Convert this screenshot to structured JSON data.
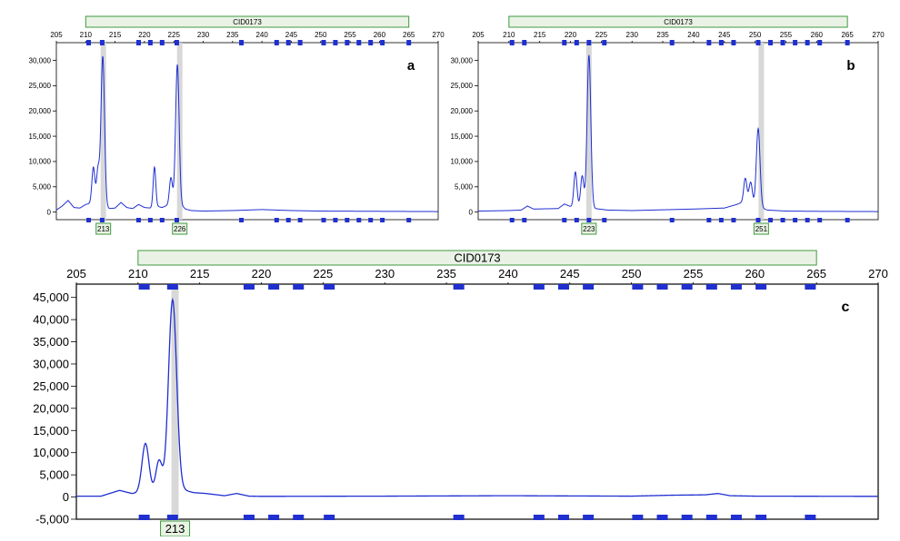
{
  "colors": {
    "trace": "#1f2fd0",
    "bin_marker": "#1f2fd0",
    "locus_fill": "#eaf2e6",
    "locus_border": "#3f9a3f",
    "allele_fill": "#e8f3e3",
    "highlight": "#d8d8d8"
  },
  "chart_data": [
    {
      "type": "line",
      "panel_label": "a",
      "locus_name": "CID0173",
      "x_ticks": [
        205,
        210,
        215,
        220,
        225,
        230,
        235,
        240,
        245,
        250,
        255,
        260,
        265,
        270
      ],
      "x_range": [
        205,
        270
      ],
      "y_ticks": [
        0,
        5000,
        10000,
        15000,
        20000,
        25000,
        30000
      ],
      "y_tick_labels": [
        "0",
        "5,000",
        "10,000",
        "15,000",
        "20,000",
        "25,000",
        "30,000"
      ],
      "y_range": [
        -1500,
        33500
      ],
      "locus_range": [
        210,
        265
      ],
      "bins": [
        210.5,
        212.8,
        219,
        221,
        223,
        225.5,
        236.5,
        242.5,
        244.5,
        246.5,
        250.5,
        252.5,
        254.5,
        256.5,
        258.5,
        260.5,
        265
      ],
      "alleles": [
        {
          "x": 213,
          "label": "213"
        },
        {
          "x": 226,
          "label": "226"
        }
      ],
      "baseline": [
        [
          205,
          400
        ],
        [
          206,
          1200
        ],
        [
          207,
          2300
        ],
        [
          208,
          900
        ],
        [
          209,
          800
        ],
        [
          210,
          1500
        ],
        [
          211,
          1800
        ],
        [
          212,
          2000
        ],
        [
          213,
          1200
        ],
        [
          214,
          700
        ],
        [
          215,
          800
        ],
        [
          216,
          1900
        ],
        [
          217,
          900
        ],
        [
          218,
          700
        ],
        [
          219,
          1500
        ],
        [
          220,
          900
        ],
        [
          221,
          800
        ],
        [
          222,
          1200
        ],
        [
          223,
          900
        ],
        [
          224,
          1400
        ],
        [
          225,
          1800
        ],
        [
          226,
          1600
        ],
        [
          227,
          600
        ],
        [
          228,
          300
        ],
        [
          230,
          200
        ],
        [
          235,
          300
        ],
        [
          240,
          500
        ],
        [
          245,
          300
        ],
        [
          250,
          200
        ],
        [
          260,
          150
        ],
        [
          270,
          100
        ]
      ],
      "peaks": [
        [
          211.3,
          7000,
          0.25
        ],
        [
          212.1,
          6500,
          0.25
        ],
        [
          212.9,
          29500,
          0.3
        ],
        [
          221.7,
          7800,
          0.22
        ],
        [
          224.5,
          5200,
          0.25
        ],
        [
          225.6,
          27500,
          0.3
        ]
      ]
    },
    {
      "type": "line",
      "panel_label": "b",
      "locus_name": "CID0173",
      "x_ticks": [
        205,
        210,
        215,
        220,
        225,
        230,
        235,
        240,
        245,
        250,
        255,
        260,
        265,
        270
      ],
      "x_range": [
        205,
        270
      ],
      "y_ticks": [
        0,
        5000,
        10000,
        15000,
        20000,
        25000,
        30000
      ],
      "y_tick_labels": [
        "0",
        "5,000",
        "10,000",
        "15,000",
        "20,000",
        "25,000",
        "30,000"
      ],
      "y_range": [
        -1500,
        33500
      ],
      "locus_range": [
        210,
        265
      ],
      "bins": [
        210.5,
        212.5,
        219,
        221,
        223,
        225.5,
        236.5,
        242.5,
        244.5,
        246.5,
        250.5,
        252.5,
        254.5,
        256.5,
        258.5,
        260.5,
        265
      ],
      "alleles": [
        {
          "x": 223,
          "label": "223"
        },
        {
          "x": 251,
          "label": "251"
        }
      ],
      "baseline": [
        [
          205,
          200
        ],
        [
          210,
          300
        ],
        [
          212,
          400
        ],
        [
          213,
          1200
        ],
        [
          214,
          600
        ],
        [
          218,
          700
        ],
        [
          219,
          1600
        ],
        [
          220,
          1100
        ],
        [
          221,
          900
        ],
        [
          222,
          1400
        ],
        [
          224,
          700
        ],
        [
          226,
          400
        ],
        [
          230,
          300
        ],
        [
          240,
          600
        ],
        [
          245,
          800
        ],
        [
          247,
          1500
        ],
        [
          249,
          2500
        ],
        [
          250,
          1200
        ],
        [
          252,
          400
        ],
        [
          255,
          200
        ],
        [
          260,
          150
        ],
        [
          270,
          100
        ]
      ],
      "peaks": [
        [
          220.8,
          7000,
          0.25
        ],
        [
          221.9,
          5800,
          0.25
        ],
        [
          223.0,
          30000,
          0.3
        ],
        [
          248.4,
          4500,
          0.25
        ],
        [
          249.3,
          3800,
          0.25
        ],
        [
          250.5,
          15500,
          0.3
        ]
      ]
    },
    {
      "type": "line",
      "panel_label": "c",
      "locus_name": "CID0173",
      "x_ticks": [
        205,
        210,
        215,
        220,
        225,
        230,
        235,
        240,
        245,
        250,
        255,
        260,
        265,
        270
      ],
      "x_range": [
        205,
        270
      ],
      "y_ticks": [
        -5000,
        0,
        5000,
        10000,
        15000,
        20000,
        25000,
        30000,
        35000,
        40000,
        45000
      ],
      "y_tick_labels": [
        "-5,000",
        "0",
        "5,000",
        "10,000",
        "15,000",
        "20,000",
        "25,000",
        "30,000",
        "35,000",
        "40,000",
        "45,000"
      ],
      "y_range": [
        -5000,
        48000
      ],
      "locus_range": [
        210,
        265
      ],
      "bins": [
        210.5,
        212.8,
        219,
        221,
        223,
        225.5,
        236,
        242.5,
        244.5,
        246.5,
        250.5,
        252.5,
        254.5,
        256.5,
        258.5,
        260.5,
        264.5
      ],
      "alleles": [
        {
          "x": 213,
          "label": "213"
        }
      ],
      "baseline": [
        [
          205,
          200
        ],
        [
          207,
          200
        ],
        [
          208.5,
          1500
        ],
        [
          209.5,
          800
        ],
        [
          212,
          1500
        ],
        [
          213.8,
          1500
        ],
        [
          214.5,
          1000
        ],
        [
          215.5,
          800
        ],
        [
          217,
          300
        ],
        [
          218,
          800
        ],
        [
          219,
          200
        ],
        [
          220,
          150
        ],
        [
          230,
          200
        ],
        [
          240,
          300
        ],
        [
          245,
          250
        ],
        [
          250,
          200
        ],
        [
          253,
          400
        ],
        [
          256,
          500
        ],
        [
          257,
          800
        ],
        [
          258,
          300
        ],
        [
          260,
          200
        ],
        [
          270,
          150
        ]
      ],
      "peaks": [
        [
          210.6,
          11000,
          0.28
        ],
        [
          211.7,
          6800,
          0.25
        ],
        [
          212.8,
          43000,
          0.33
        ]
      ]
    }
  ]
}
